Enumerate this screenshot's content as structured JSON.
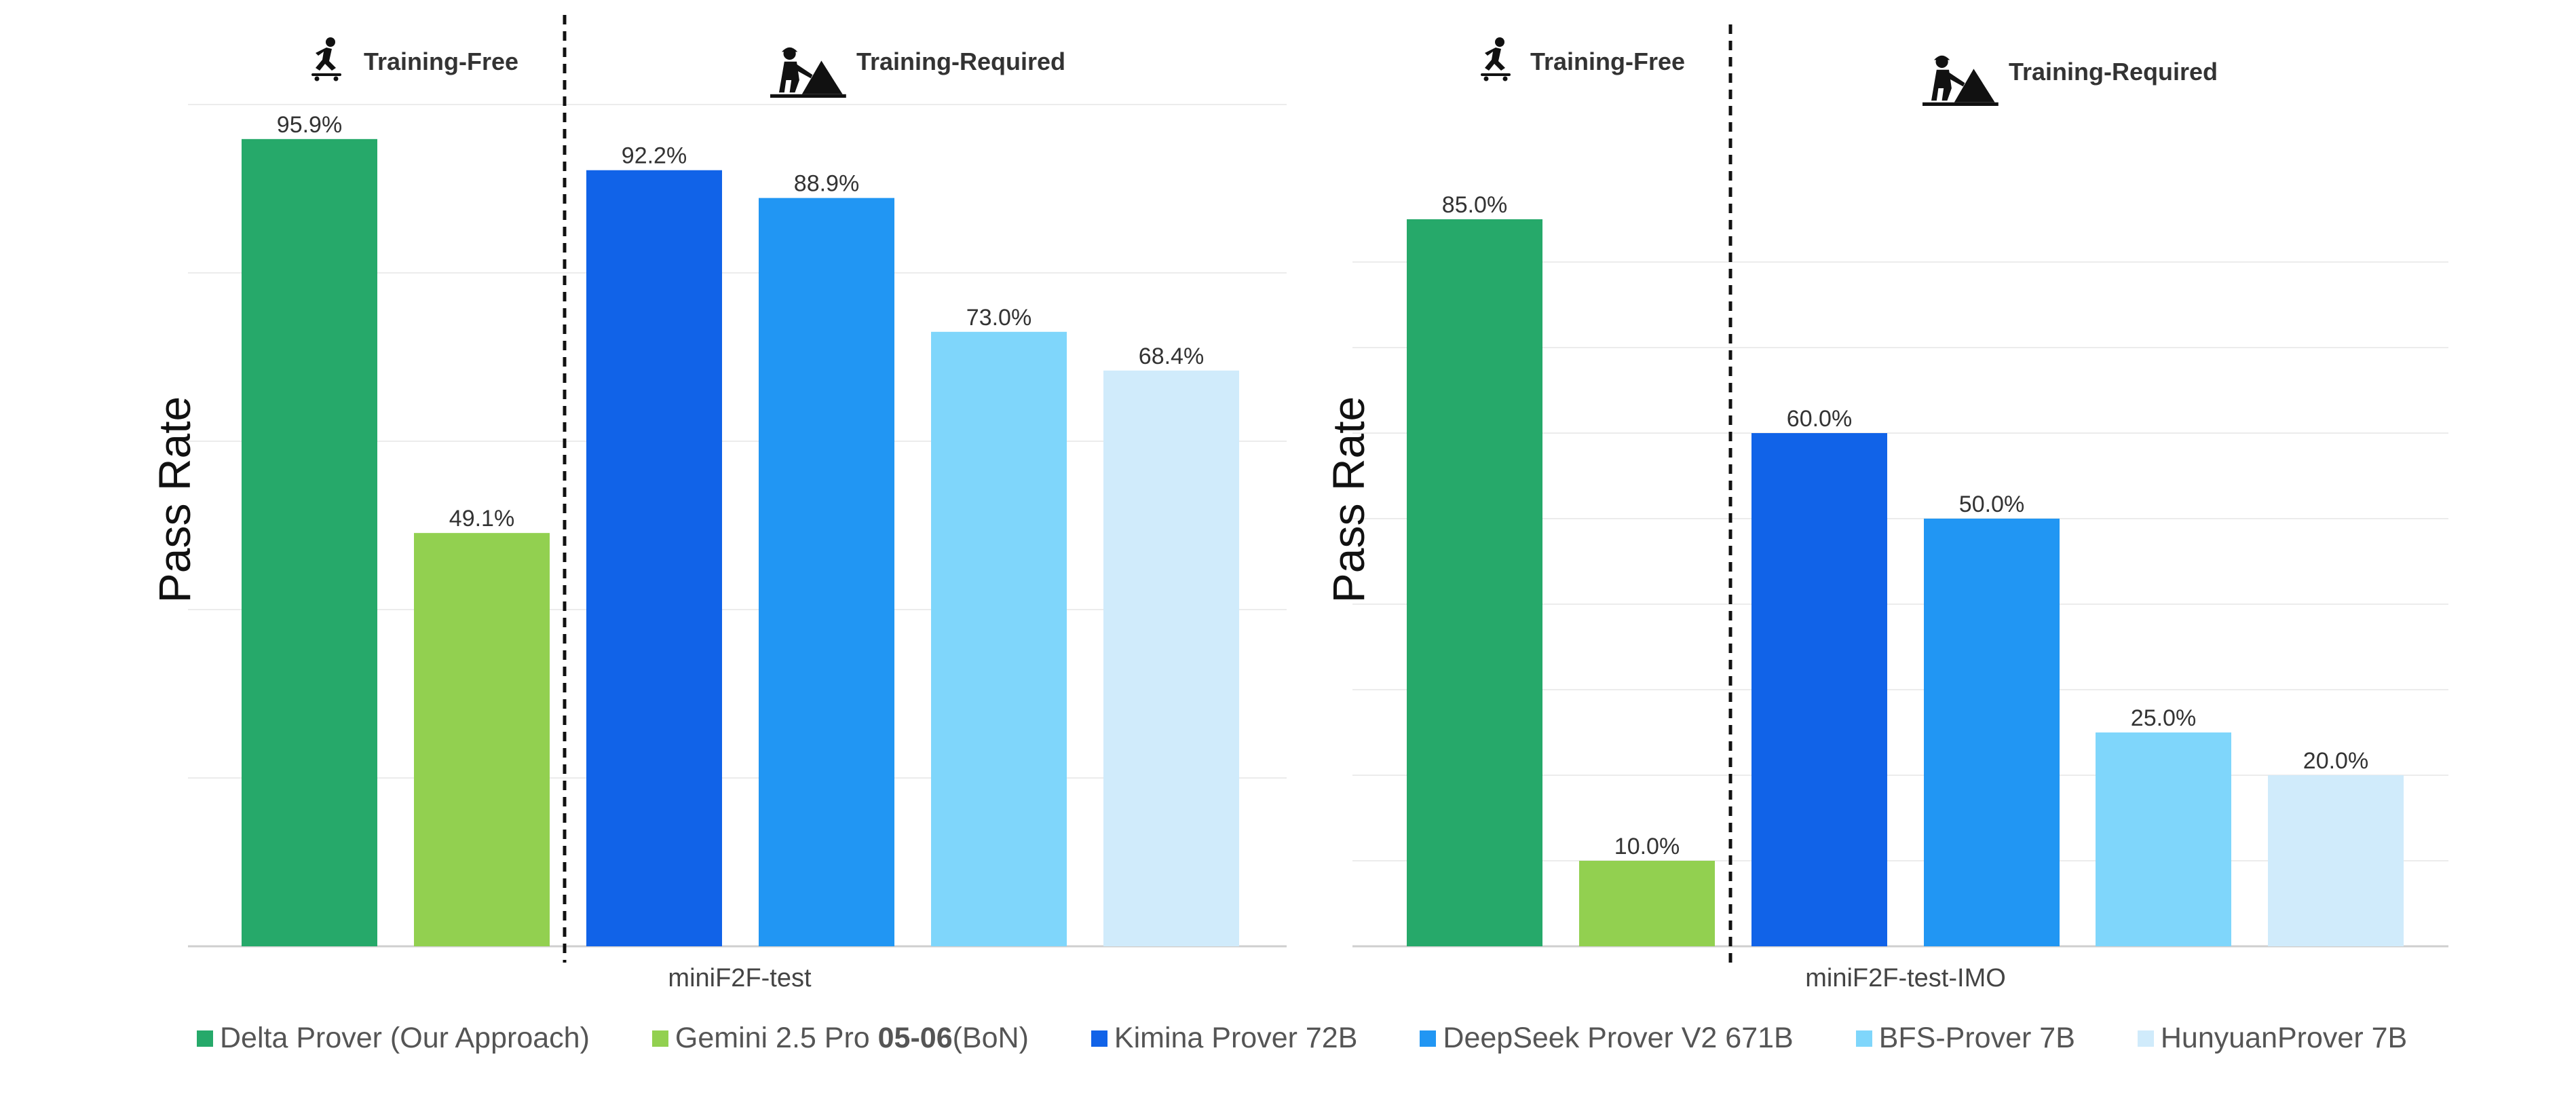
{
  "chart_data": [
    {
      "type": "bar",
      "xlabel": "miniF2F-test",
      "ylabel": "Pass Rate",
      "ylim": [
        0,
        100
      ],
      "grid": true,
      "groups": [
        {
          "label": "Training-Free",
          "icon": "skateboarder-icon"
        },
        {
          "label": "Training-Required",
          "icon": "construction-worker-icon"
        }
      ],
      "categories": [
        "Delta Prover (Our Approach)",
        "Gemini 2.5 Pro 05-06 (BoN)",
        "Kimina Prover 72B",
        "DeepSeek Prover V2 671B",
        "BFS-Prover 7B",
        "HunyuanProver 7B"
      ],
      "values": [
        95.9,
        49.1,
        92.2,
        88.9,
        73.0,
        68.4
      ],
      "data_labels": [
        "95.9%",
        "49.1%",
        "92.2%",
        "88.9%",
        "73.0%",
        "68.4%"
      ]
    },
    {
      "type": "bar",
      "xlabel": "miniF2F-test-IMO",
      "ylabel": "Pass Rate",
      "ylim": [
        0,
        100
      ],
      "grid": true,
      "groups": [
        {
          "label": "Training-Free",
          "icon": "skateboarder-icon"
        },
        {
          "label": "Training-Required",
          "icon": "construction-worker-icon"
        }
      ],
      "categories": [
        "Delta Prover (Our Approach)",
        "Gemini 2.5 Pro 05-06 (BoN)",
        "Kimina Prover 72B",
        "DeepSeek Prover V2 671B",
        "BFS-Prover 7B",
        "HunyuanProver 7B"
      ],
      "values": [
        85.0,
        10.0,
        60.0,
        50.0,
        25.0,
        20.0
      ],
      "data_labels": [
        "85.0%",
        "10.0%",
        "60.0%",
        "50.0%",
        "25.0%",
        "20.0%"
      ]
    }
  ],
  "legend": {
    "placement": "bottom",
    "items": [
      {
        "label": "Delta Prover (Our Approach)",
        "color": "#26a96a"
      },
      {
        "label_prefix": "Gemini 2.5 Pro ",
        "label_bold": "05-06",
        "label_suffix": "(BoN)",
        "color": "#92d050"
      },
      {
        "label": "Kimina Prover 72B",
        "color": "#1163e8"
      },
      {
        "label": "DeepSeek Prover V2 671B",
        "color": "#2196f3"
      },
      {
        "label": "BFS-Prover 7B",
        "color": "#7fd6fb"
      },
      {
        "label": "HunyuanProver 7B",
        "color": "#d0ebfb"
      }
    ]
  }
}
